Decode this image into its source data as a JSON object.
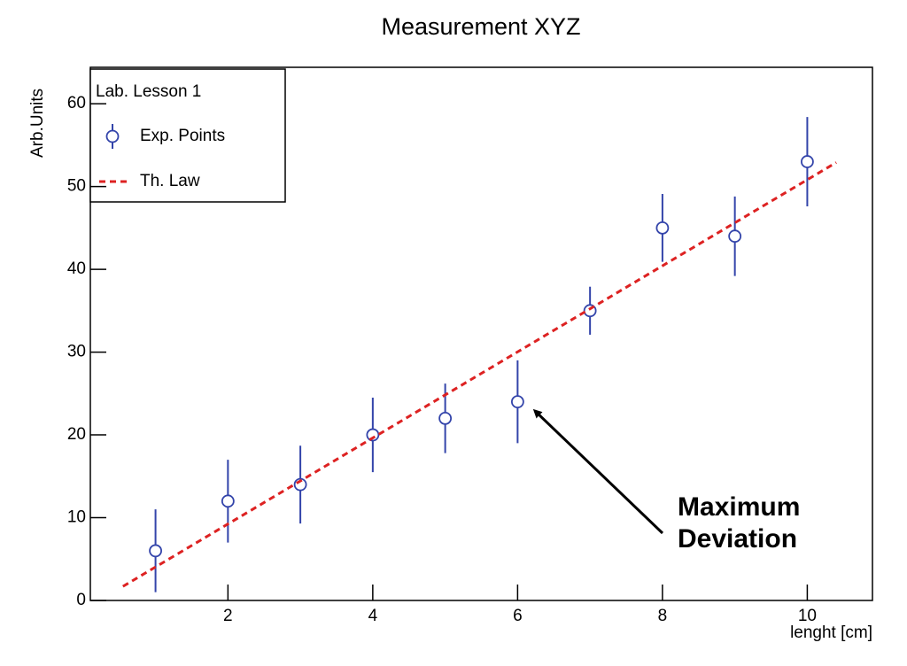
{
  "chart_data": {
    "type": "errorbar",
    "title": "Measurement XYZ",
    "x_label": "lenght [cm]",
    "y_label": "Arb.Units",
    "legend_title": "Lab. Lesson 1",
    "legend_position": "top-left",
    "xlim": [
      0.1,
      10.9
    ],
    "xticks": [
      2,
      4,
      6,
      8,
      10
    ],
    "ylim": [
      0,
      64.4
    ],
    "yticks": [
      0,
      10,
      20,
      30,
      40,
      50,
      60
    ],
    "series": [
      {
        "name": "Exp. Points",
        "color": "#3344aa",
        "x": [
          1,
          2,
          3,
          4,
          5,
          6,
          7,
          8,
          9,
          10
        ],
        "values": [
          6,
          12,
          14,
          20,
          22,
          24,
          35,
          45,
          44,
          53
        ],
        "errors": [
          5,
          5,
          4.7,
          4.5,
          4.2,
          5,
          2.9,
          4.1,
          4.8,
          5.4
        ]
      },
      {
        "name": "Th. Law",
        "color": "#dd2222",
        "style": "dashed",
        "x": [
          0.55,
          10.4
        ],
        "values": [
          1.7,
          52.9
        ]
      }
    ],
    "annotation": [
      "Maximum",
      "Deviation"
    ]
  }
}
